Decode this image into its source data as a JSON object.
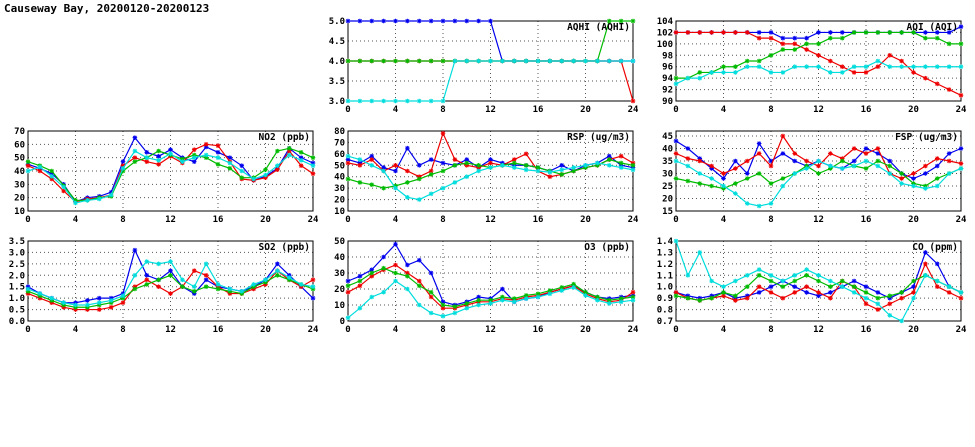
{
  "page": {
    "title": "Causeway Bay, 20200120-20200123"
  },
  "colors": {
    "blue": "#0000ee",
    "red": "#ee0000",
    "green": "#00bb00",
    "cyan": "#00dddd"
  },
  "x_axis": {
    "lim": [
      0,
      24
    ],
    "ticks": [
      0,
      4,
      8,
      12,
      16,
      20,
      24
    ]
  },
  "chart_data": [
    {
      "id": "aqhi",
      "type": "line",
      "title": "AQHI (AQHI)",
      "row": 0,
      "col": 1,
      "ylim": [
        3,
        5
      ],
      "ystep": 0.5,
      "ydec": 1,
      "series": [
        {
          "name": "blue",
          "color": "blue",
          "values": [
            5,
            5,
            5,
            5,
            5,
            5,
            5,
            5,
            5,
            5,
            5,
            5,
            5,
            4,
            4,
            4,
            4,
            4,
            4,
            4,
            4,
            4,
            4,
            4,
            4
          ]
        },
        {
          "name": "red",
          "color": "red",
          "values": [
            4,
            4,
            4,
            4,
            4,
            4,
            4,
            4,
            4,
            4,
            4,
            4,
            4,
            4,
            4,
            4,
            4,
            4,
            4,
            4,
            4,
            4,
            4,
            4,
            3
          ]
        },
        {
          "name": "green",
          "color": "green",
          "values": [
            4,
            4,
            4,
            4,
            4,
            4,
            4,
            4,
            4,
            4,
            4,
            4,
            4,
            4,
            4,
            4,
            4,
            4,
            4,
            4,
            4,
            4,
            5,
            5,
            5
          ]
        },
        {
          "name": "cyan",
          "color": "cyan",
          "values": [
            3,
            3,
            3,
            3,
            3,
            3,
            3,
            3,
            3,
            4,
            4,
            4,
            4,
            4,
            4,
            4,
            4,
            4,
            4,
            4,
            4,
            4,
            4,
            4,
            4
          ]
        }
      ]
    },
    {
      "id": "aqi",
      "type": "line",
      "title": "AQI (AQI)",
      "row": 0,
      "col": 2,
      "ylim": [
        90,
        104
      ],
      "ystep": 2,
      "ydec": 0,
      "series": [
        {
          "name": "blue",
          "color": "blue",
          "values": [
            102,
            102,
            102,
            102,
            102,
            102,
            102,
            102,
            102,
            101,
            101,
            101,
            102,
            102,
            102,
            102,
            102,
            102,
            102,
            102,
            102,
            102,
            102,
            102,
            103
          ]
        },
        {
          "name": "red",
          "color": "red",
          "values": [
            102,
            102,
            102,
            102,
            102,
            102,
            102,
            101,
            101,
            100,
            100,
            99,
            98,
            97,
            96,
            95,
            95,
            96,
            98,
            97,
            95,
            94,
            93,
            92,
            91
          ]
        },
        {
          "name": "green",
          "color": "green",
          "values": [
            94,
            94,
            95,
            95,
            96,
            96,
            97,
            97,
            98,
            99,
            99,
            100,
            100,
            101,
            101,
            102,
            102,
            102,
            102,
            102,
            102,
            101,
            101,
            100,
            100
          ]
        },
        {
          "name": "cyan",
          "color": "cyan",
          "values": [
            93,
            94,
            94,
            95,
            95,
            95,
            96,
            96,
            95,
            95,
            96,
            96,
            96,
            95,
            95,
            96,
            96,
            97,
            96,
            96,
            96,
            96,
            96,
            96,
            96
          ]
        }
      ]
    },
    {
      "id": "no2",
      "type": "line",
      "title": "NO2 (ppb)",
      "row": 1,
      "col": 0,
      "ylim": [
        10,
        70
      ],
      "ystep": 10,
      "ydec": 0,
      "series": [
        {
          "name": "blue",
          "color": "blue",
          "values": [
            45,
            42,
            38,
            30,
            17,
            20,
            21,
            24,
            47,
            65,
            54,
            51,
            56,
            50,
            47,
            58,
            54,
            50,
            44,
            33,
            36,
            42,
            57,
            50,
            46
          ]
        },
        {
          "name": "red",
          "color": "red",
          "values": [
            44,
            40,
            34,
            25,
            17,
            19,
            20,
            22,
            44,
            50,
            47,
            45,
            51,
            46,
            56,
            60,
            59,
            47,
            34,
            33,
            35,
            41,
            55,
            44,
            38
          ]
        },
        {
          "name": "green",
          "color": "green",
          "values": [
            47,
            44,
            40,
            29,
            18,
            18,
            20,
            21,
            40,
            47,
            50,
            55,
            52,
            49,
            52,
            50,
            45,
            42,
            35,
            35,
            41,
            55,
            57,
            54,
            50
          ]
        },
        {
          "name": "cyan",
          "color": "cyan",
          "values": [
            40,
            43,
            36,
            28,
            16,
            18,
            19,
            22,
            42,
            55,
            50,
            48,
            53,
            47,
            50,
            52,
            50,
            46,
            40,
            34,
            37,
            44,
            52,
            48,
            44
          ]
        }
      ]
    },
    {
      "id": "rsp",
      "type": "line",
      "title": "RSP (ug/m3)",
      "row": 1,
      "col": 1,
      "ylim": [
        10,
        80
      ],
      "ystep": 10,
      "ydec": 0,
      "series": [
        {
          "name": "blue",
          "color": "blue",
          "values": [
            55,
            52,
            58,
            48,
            45,
            65,
            50,
            55,
            52,
            50,
            55,
            48,
            55,
            52,
            50,
            50,
            48,
            45,
            50,
            45,
            50,
            52,
            58,
            50,
            48
          ]
        },
        {
          "name": "red",
          "color": "red",
          "values": [
            52,
            50,
            55,
            45,
            50,
            45,
            40,
            45,
            78,
            55,
            50,
            48,
            52,
            50,
            55,
            60,
            45,
            40,
            42,
            45,
            48,
            50,
            55,
            58,
            52
          ]
        },
        {
          "name": "green",
          "color": "green",
          "values": [
            38,
            35,
            33,
            30,
            32,
            35,
            38,
            42,
            45,
            50,
            52,
            50,
            48,
            50,
            52,
            50,
            48,
            45,
            42,
            45,
            48,
            50,
            55,
            52,
            50
          ]
        },
        {
          "name": "cyan",
          "color": "cyan",
          "values": [
            58,
            55,
            50,
            45,
            30,
            22,
            20,
            25,
            30,
            35,
            40,
            45,
            48,
            50,
            48,
            46,
            45,
            44,
            46,
            48,
            50,
            52,
            50,
            48,
            46
          ]
        }
      ]
    },
    {
      "id": "fsp",
      "type": "line",
      "title": "FSP (ug/m3)",
      "row": 1,
      "col": 2,
      "ylim": [
        15,
        47
      ],
      "ystep": 5,
      "ydec": 0,
      "series": [
        {
          "name": "blue",
          "color": "blue",
          "values": [
            43,
            40,
            36,
            32,
            28,
            35,
            30,
            42,
            35,
            38,
            35,
            33,
            35,
            33,
            32,
            35,
            40,
            38,
            35,
            30,
            28,
            30,
            33,
            38,
            40
          ]
        },
        {
          "name": "red",
          "color": "red",
          "values": [
            38,
            36,
            35,
            33,
            30,
            32,
            35,
            38,
            33,
            45,
            38,
            35,
            33,
            38,
            36,
            40,
            38,
            40,
            30,
            28,
            30,
            33,
            36,
            35,
            34
          ]
        },
        {
          "name": "green",
          "color": "green",
          "values": [
            28,
            27,
            26,
            25,
            24,
            26,
            28,
            30,
            26,
            28,
            30,
            33,
            30,
            32,
            35,
            33,
            32,
            35,
            33,
            30,
            26,
            25,
            28,
            30,
            32
          ]
        },
        {
          "name": "cyan",
          "color": "cyan",
          "values": [
            35,
            33,
            30,
            28,
            25,
            22,
            18,
            17,
            18,
            25,
            30,
            32,
            35,
            33,
            32,
            33,
            35,
            33,
            30,
            26,
            25,
            24,
            25,
            30,
            32
          ]
        }
      ]
    },
    {
      "id": "so2",
      "type": "line",
      "title": "SO2 (ppb)",
      "row": 2,
      "col": 0,
      "ylim": [
        0,
        3.5
      ],
      "ystep": 0.5,
      "ydec": 1,
      "series": [
        {
          "name": "blue",
          "color": "blue",
          "values": [
            1.5,
            1.2,
            1.0,
            0.8,
            0.8,
            0.9,
            1.0,
            1.0,
            1.2,
            3.1,
            2.0,
            1.8,
            2.2,
            1.5,
            1.2,
            1.8,
            1.5,
            1.4,
            1.3,
            1.5,
            1.8,
            2.5,
            2.0,
            1.5,
            1.0
          ]
        },
        {
          "name": "red",
          "color": "red",
          "values": [
            1.2,
            1.0,
            0.8,
            0.6,
            0.5,
            0.5,
            0.5,
            0.6,
            0.8,
            1.5,
            1.8,
            1.5,
            1.2,
            1.5,
            2.2,
            2.0,
            1.5,
            1.2,
            1.2,
            1.4,
            1.6,
            2.2,
            1.8,
            1.5,
            1.8
          ]
        },
        {
          "name": "green",
          "color": "green",
          "values": [
            1.3,
            1.1,
            0.9,
            0.7,
            0.6,
            0.6,
            0.7,
            0.8,
            1.0,
            1.4,
            1.6,
            1.8,
            2.0,
            1.5,
            1.3,
            1.5,
            1.4,
            1.3,
            1.2,
            1.5,
            1.7,
            2.0,
            1.8,
            1.6,
            1.4
          ]
        },
        {
          "name": "cyan",
          "color": "cyan",
          "values": [
            1.4,
            1.2,
            1.0,
            0.8,
            0.7,
            0.7,
            0.8,
            0.9,
            1.1,
            2.0,
            2.6,
            2.5,
            2.6,
            1.8,
            1.5,
            2.5,
            1.6,
            1.4,
            1.3,
            1.6,
            1.8,
            2.2,
            1.9,
            1.6,
            1.5
          ]
        }
      ]
    },
    {
      "id": "o3",
      "type": "line",
      "title": "O3 (ppb)",
      "row": 2,
      "col": 1,
      "ylim": [
        0,
        50
      ],
      "ystep": 10,
      "ydec": 0,
      "series": [
        {
          "name": "blue",
          "color": "blue",
          "values": [
            25,
            28,
            32,
            40,
            48,
            35,
            38,
            30,
            12,
            10,
            12,
            15,
            14,
            20,
            12,
            14,
            15,
            18,
            20,
            22,
            18,
            15,
            14,
            15,
            16
          ]
        },
        {
          "name": "red",
          "color": "red",
          "values": [
            18,
            22,
            28,
            32,
            35,
            30,
            25,
            15,
            8,
            8,
            10,
            12,
            12,
            14,
            13,
            15,
            16,
            18,
            20,
            22,
            17,
            14,
            12,
            13,
            18
          ]
        },
        {
          "name": "green",
          "color": "green",
          "values": [
            22,
            25,
            30,
            33,
            30,
            28,
            22,
            18,
            10,
            9,
            11,
            13,
            13,
            15,
            14,
            16,
            17,
            19,
            21,
            23,
            18,
            15,
            13,
            14,
            15
          ]
        },
        {
          "name": "cyan",
          "color": "cyan",
          "values": [
            2,
            8,
            15,
            18,
            25,
            20,
            10,
            5,
            3,
            5,
            8,
            10,
            11,
            13,
            12,
            14,
            15,
            17,
            19,
            21,
            16,
            13,
            11,
            12,
            13
          ]
        }
      ]
    },
    {
      "id": "co",
      "type": "line",
      "title": "CO (ppm)",
      "row": 2,
      "col": 2,
      "ylim": [
        0.7,
        1.4
      ],
      "ystep": 0.1,
      "ydec": 1,
      "series": [
        {
          "name": "blue",
          "color": "blue",
          "values": [
            0.95,
            0.92,
            0.9,
            0.92,
            0.95,
            0.9,
            0.92,
            0.95,
            1.0,
            1.05,
            1.0,
            0.95,
            0.92,
            0.95,
            1.0,
            1.05,
            1.0,
            0.95,
            0.9,
            0.95,
            1.0,
            1.3,
            1.2,
            1.0,
            0.95
          ]
        },
        {
          "name": "red",
          "color": "red",
          "values": [
            0.95,
            0.9,
            0.88,
            0.9,
            0.92,
            0.88,
            0.9,
            1.0,
            0.95,
            0.9,
            0.95,
            1.0,
            0.95,
            0.9,
            1.05,
            1.0,
            0.85,
            0.8,
            0.85,
            0.9,
            0.95,
            1.2,
            1.0,
            0.95,
            0.9
          ]
        },
        {
          "name": "green",
          "color": "green",
          "values": [
            0.92,
            0.9,
            0.88,
            0.9,
            0.95,
            0.92,
            1.0,
            1.1,
            1.05,
            1.0,
            1.05,
            1.1,
            1.05,
            1.0,
            1.05,
            1.0,
            0.95,
            0.9,
            0.92,
            0.95,
            1.05,
            1.1,
            1.05,
            1.0,
            0.95
          ]
        },
        {
          "name": "cyan",
          "color": "cyan",
          "values": [
            1.4,
            1.1,
            1.3,
            1.05,
            1.0,
            1.05,
            1.1,
            1.15,
            1.1,
            1.05,
            1.1,
            1.15,
            1.1,
            1.05,
            1.0,
            0.95,
            0.9,
            0.85,
            0.75,
            0.7,
            0.9,
            1.1,
            1.05,
            1.0,
            0.95
          ]
        }
      ]
    }
  ]
}
